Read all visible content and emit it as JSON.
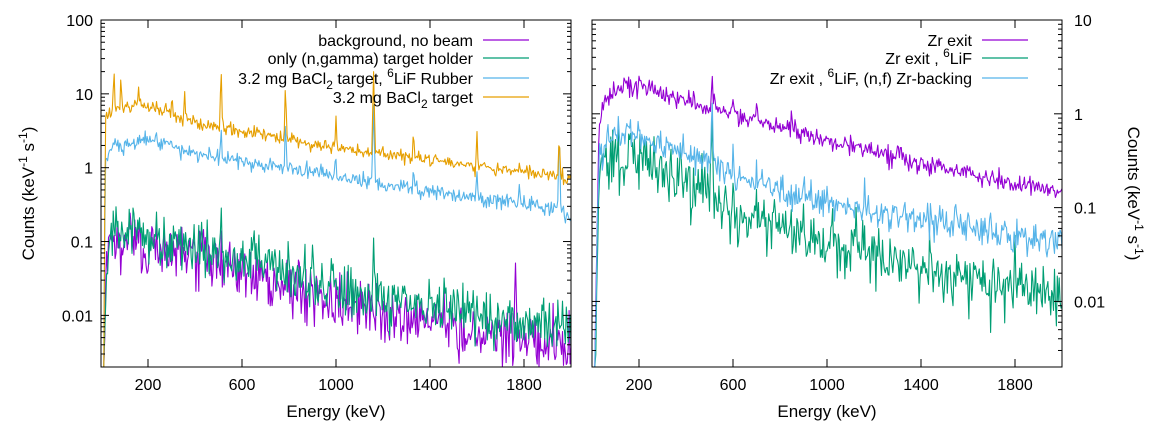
{
  "chart_data": [
    {
      "type": "line",
      "title": "",
      "xlabel": "Energy (keV)",
      "ylabel": "Counts (keV^-1 s^-1)",
      "ylabel_parts": [
        "Counts (keV",
        "-1",
        " s",
        "-1",
        ")"
      ],
      "ylabel_side": "left",
      "xlim": [
        0,
        2000
      ],
      "ylim": [
        0.002,
        100
      ],
      "yscale": "log",
      "xticks": [
        200,
        600,
        1000,
        1400,
        1800
      ],
      "xtick_labels": [
        "200",
        "600",
        "1000",
        "1400",
        "1800"
      ],
      "yticks": [
        0.01,
        0.1,
        1,
        10,
        100
      ],
      "ytick_labels": [
        "0.01",
        "0.1",
        "1",
        "10",
        "100"
      ],
      "ytick_side": "left",
      "grid": false,
      "legend_position": "top-right",
      "series": [
        {
          "name": "background, no beam",
          "legend_parts": [
            {
              "t": "background, no beam"
            }
          ],
          "color": "#9400d3",
          "knots": [
            [
              0,
              0.002
            ],
            [
              12,
              0.002
            ],
            [
              22,
              0.04
            ],
            [
              40,
              0.085
            ],
            [
              80,
              0.1
            ],
            [
              200,
              0.09
            ],
            [
              400,
              0.06
            ],
            [
              600,
              0.04
            ],
            [
              800,
              0.025
            ],
            [
              1000,
              0.016
            ],
            [
              1200,
              0.011
            ],
            [
              1400,
              0.008
            ],
            [
              1600,
              0.006
            ],
            [
              1800,
              0.005
            ],
            [
              2000,
              0.004
            ]
          ],
          "peaks": [
            [
              511,
              0.09
            ],
            [
              1000,
              0.03
            ],
            [
              1460,
              0.02
            ],
            [
              1764,
              0.05
            ],
            [
              1950,
              0.008
            ]
          ],
          "noise": 0.45,
          "floor": 0.002
        },
        {
          "name": "only (n,gamma) target holder",
          "legend_parts": [
            {
              "t": "only (n,gamma) target holder"
            }
          ],
          "color": "#009e73",
          "knots": [
            [
              0,
              0.002
            ],
            [
              12,
              0.002
            ],
            [
              22,
              0.05
            ],
            [
              40,
              0.1
            ],
            [
              80,
              0.12
            ],
            [
              200,
              0.12
            ],
            [
              400,
              0.08
            ],
            [
              600,
              0.06
            ],
            [
              800,
              0.035
            ],
            [
              1000,
              0.022
            ],
            [
              1200,
              0.016
            ],
            [
              1400,
              0.012
            ],
            [
              1600,
              0.01
            ],
            [
              1800,
              0.008
            ],
            [
              2000,
              0.007
            ]
          ],
          "peaks": [
            [
              65,
              0.3
            ],
            [
              140,
              0.25
            ],
            [
              511,
              0.3
            ],
            [
              650,
              0.15
            ],
            [
              900,
              0.08
            ],
            [
              1000,
              0.04
            ],
            [
              1160,
              0.1
            ],
            [
              1460,
              0.03
            ]
          ],
          "noise": 0.4,
          "floor": 0.002
        },
        {
          "name": "3.2 mg BaCl2 target, 6LiF Rubber",
          "legend_parts": [
            {
              "t": "3.2 mg BaCl"
            },
            {
              "t": "2",
              "sub": true
            },
            {
              "t": " target,  "
            },
            {
              "t": "6",
              "sup": true
            },
            {
              "t": "LiF Rubber"
            }
          ],
          "color": "#56b4e9",
          "knots": [
            [
              0,
              0.002
            ],
            [
              12,
              0.002
            ],
            [
              18,
              1.2
            ],
            [
              35,
              1.8
            ],
            [
              100,
              2.0
            ],
            [
              200,
              2.5
            ],
            [
              300,
              1.9
            ],
            [
              400,
              1.5
            ],
            [
              600,
              1.25
            ],
            [
              800,
              0.95
            ],
            [
              1000,
              0.8
            ],
            [
              1200,
              0.6
            ],
            [
              1400,
              0.5
            ],
            [
              1600,
              0.4
            ],
            [
              1800,
              0.32
            ],
            [
              1940,
              0.28
            ],
            [
              2000,
              0.2
            ]
          ],
          "peaks": [
            [
              511,
              3.5
            ],
            [
              785,
              4.0
            ],
            [
              1000,
              1.4
            ],
            [
              1160,
              7.0
            ],
            [
              1330,
              1.0
            ],
            [
              1600,
              0.9
            ],
            [
              1780,
              0.6
            ],
            [
              1950,
              2.5
            ]
          ],
          "noise": 0.12,
          "floor": 0.002
        },
        {
          "name": "3.2 mg BaCl2 target",
          "legend_parts": [
            {
              "t": "3.2 mg BaCl"
            },
            {
              "t": "2",
              "sub": true
            },
            {
              "t": " target"
            }
          ],
          "color": "#e69f00",
          "knots": [
            [
              0,
              0.002
            ],
            [
              12,
              0.002
            ],
            [
              18,
              4.5
            ],
            [
              35,
              6.0
            ],
            [
              100,
              6.5
            ],
            [
              200,
              7.0
            ],
            [
              300,
              5.2
            ],
            [
              400,
              4.0
            ],
            [
              600,
              3.2
            ],
            [
              800,
              2.4
            ],
            [
              1000,
              1.9
            ],
            [
              1200,
              1.55
            ],
            [
              1400,
              1.25
            ],
            [
              1600,
              1.05
            ],
            [
              1800,
              0.9
            ],
            [
              1940,
              0.8
            ],
            [
              2000,
              0.65
            ]
          ],
          "peaks": [
            [
              55,
              20
            ],
            [
              85,
              15
            ],
            [
              160,
              12
            ],
            [
              276,
              8
            ],
            [
              302,
              8
            ],
            [
              356,
              10
            ],
            [
              511,
              20
            ],
            [
              785,
              12
            ],
            [
              1000,
              5
            ],
            [
              1160,
              20
            ],
            [
              1330,
              3
            ],
            [
              1600,
              3
            ],
            [
              1950,
              2.5
            ]
          ],
          "noise": 0.1,
          "floor": 0.002
        }
      ]
    },
    {
      "type": "line",
      "title": "",
      "xlabel": "Energy (keV)",
      "ylabel": "Counts (keV^-1 s^-1)",
      "ylabel_parts": [
        "Counts (keV",
        "-1",
        " s",
        "-1",
        ")"
      ],
      "ylabel_side": "right",
      "xlim": [
        0,
        2000
      ],
      "ylim": [
        0.002,
        10
      ],
      "yscale": "log",
      "xticks": [
        200,
        600,
        1000,
        1400,
        1800
      ],
      "xtick_labels": [
        "200",
        "600",
        "1000",
        "1400",
        "1800"
      ],
      "yticks": [
        0.01,
        0.1,
        1,
        10
      ],
      "ytick_labels": [
        "0.01",
        "0.1",
        "1",
        "10"
      ],
      "ytick_side": "right",
      "grid": false,
      "legend_position": "top-right",
      "series": [
        {
          "name": "Zr exit",
          "legend_parts": [
            {
              "t": "Zr exit"
            }
          ],
          "color": "#9400d3",
          "knots": [
            [
              0,
              0.002
            ],
            [
              12,
              0.002
            ],
            [
              30,
              0.8
            ],
            [
              60,
              1.4
            ],
            [
              100,
              1.8
            ],
            [
              150,
              2.0
            ],
            [
              200,
              2.1
            ],
            [
              300,
              1.6
            ],
            [
              400,
              1.4
            ],
            [
              600,
              1.0
            ],
            [
              800,
              0.72
            ],
            [
              1000,
              0.52
            ],
            [
              1200,
              0.4
            ],
            [
              1400,
              0.3
            ],
            [
              1600,
              0.24
            ],
            [
              1800,
              0.18
            ],
            [
              2000,
              0.15
            ]
          ],
          "peaks": [
            [
              511,
              2.5
            ],
            [
              600,
              1.5
            ],
            [
              700,
              1.2
            ],
            [
              850,
              1.0
            ],
            [
              1100,
              0.6
            ],
            [
              1300,
              0.45
            ]
          ],
          "noise": 0.12,
          "floor": 0.002
        },
        {
          "name": "Zr exit , 6LiF",
          "legend_parts": [
            {
              "t": "Zr exit ,  "
            },
            {
              "t": "6",
              "sup": true
            },
            {
              "t": "LiF"
            }
          ],
          "color": "#009e73",
          "knots": [
            [
              0,
              0.002
            ],
            [
              12,
              0.002
            ],
            [
              30,
              0.2
            ],
            [
              50,
              0.3
            ],
            [
              100,
              0.35
            ],
            [
              150,
              0.38
            ],
            [
              200,
              0.36
            ],
            [
              300,
              0.26
            ],
            [
              400,
              0.2
            ],
            [
              500,
              0.15
            ],
            [
              560,
              0.09
            ],
            [
              700,
              0.07
            ],
            [
              800,
              0.055
            ],
            [
              1000,
              0.04
            ],
            [
              1200,
              0.03
            ],
            [
              1400,
              0.024
            ],
            [
              1600,
              0.019
            ],
            [
              1800,
              0.016
            ],
            [
              2000,
              0.012
            ]
          ],
          "peaks": [
            [
              511,
              0.9
            ],
            [
              600,
              0.2
            ],
            [
              700,
              0.15
            ],
            [
              900,
              0.1
            ],
            [
              1160,
              0.07
            ],
            [
              1800,
              0.05
            ]
          ],
          "noise": 0.35,
          "floor": 0.002
        },
        {
          "name": "Zr exit , 6LiF, (n,f) Zr-backing",
          "legend_parts": [
            {
              "t": "Zr exit ,  "
            },
            {
              "t": "6",
              "sup": true
            },
            {
              "t": "LiF, (n,f) Zr-backing"
            }
          ],
          "color": "#56b4e9",
          "knots": [
            [
              0,
              0.002
            ],
            [
              12,
              0.002
            ],
            [
              30,
              0.4
            ],
            [
              60,
              0.55
            ],
            [
              100,
              0.6
            ],
            [
              150,
              0.62
            ],
            [
              200,
              0.6
            ],
            [
              300,
              0.45
            ],
            [
              400,
              0.38
            ],
            [
              500,
              0.3
            ],
            [
              600,
              0.22
            ],
            [
              800,
              0.16
            ],
            [
              1000,
              0.11
            ],
            [
              1200,
              0.09
            ],
            [
              1400,
              0.075
            ],
            [
              1600,
              0.06
            ],
            [
              1800,
              0.05
            ],
            [
              2000,
              0.045
            ]
          ],
          "peaks": [
            [
              511,
              1.4
            ],
            [
              600,
              0.5
            ],
            [
              700,
              0.35
            ],
            [
              900,
              0.2
            ],
            [
              1000,
              0.2
            ],
            [
              1160,
              0.18
            ]
          ],
          "noise": 0.2,
          "floor": 0.002
        }
      ]
    }
  ]
}
